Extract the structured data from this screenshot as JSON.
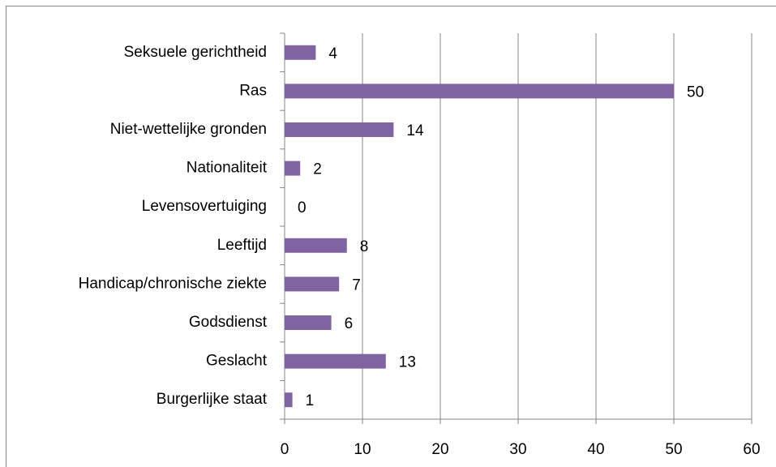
{
  "chart_data": {
    "type": "bar",
    "orientation": "horizontal",
    "categories": [
      "Seksuele gerichtheid",
      "Ras",
      "Niet-wettelijke gronden",
      "Nationaliteit",
      "Levensovertuiging",
      "Leeftijd",
      "Handicap/chronische ziekte",
      "Godsdienst",
      "Geslacht",
      "Burgerlijke staat"
    ],
    "values": [
      4,
      50,
      14,
      2,
      0,
      8,
      7,
      6,
      13,
      1
    ],
    "color": "#8064a2",
    "xlim": [
      0,
      60
    ],
    "xticks": [
      0,
      10,
      20,
      30,
      40,
      50,
      60
    ],
    "grid": true
  }
}
